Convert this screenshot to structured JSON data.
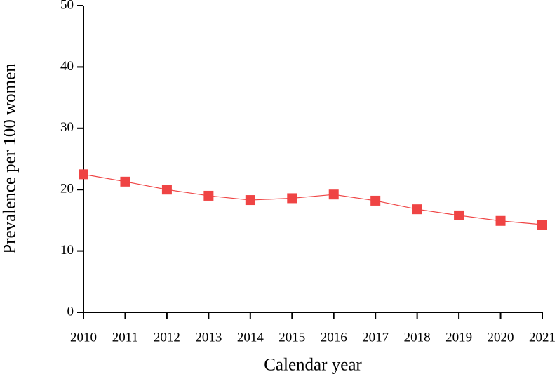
{
  "chart_data": {
    "type": "line",
    "x_label": "Calendar year",
    "y_label": "Prevalence per 100 women",
    "x": [
      2010,
      2011,
      2012,
      2013,
      2014,
      2015,
      2016,
      2017,
      2018,
      2019,
      2020,
      2021
    ],
    "series": [
      {
        "color": "#ef4444",
        "values": [
          22.5,
          21.3,
          20.0,
          19.0,
          18.3,
          18.6,
          19.2,
          18.2,
          16.8,
          15.8,
          14.9,
          14.3
        ]
      }
    ],
    "xlim": [
      2010,
      2021
    ],
    "xticks": [
      2010,
      2011,
      2012,
      2013,
      2014,
      2015,
      2016,
      2017,
      2018,
      2019,
      2020,
      2021
    ],
    "ylim": [
      0,
      50
    ],
    "yticks": [
      0,
      10,
      20,
      30,
      40,
      50
    ]
  }
}
